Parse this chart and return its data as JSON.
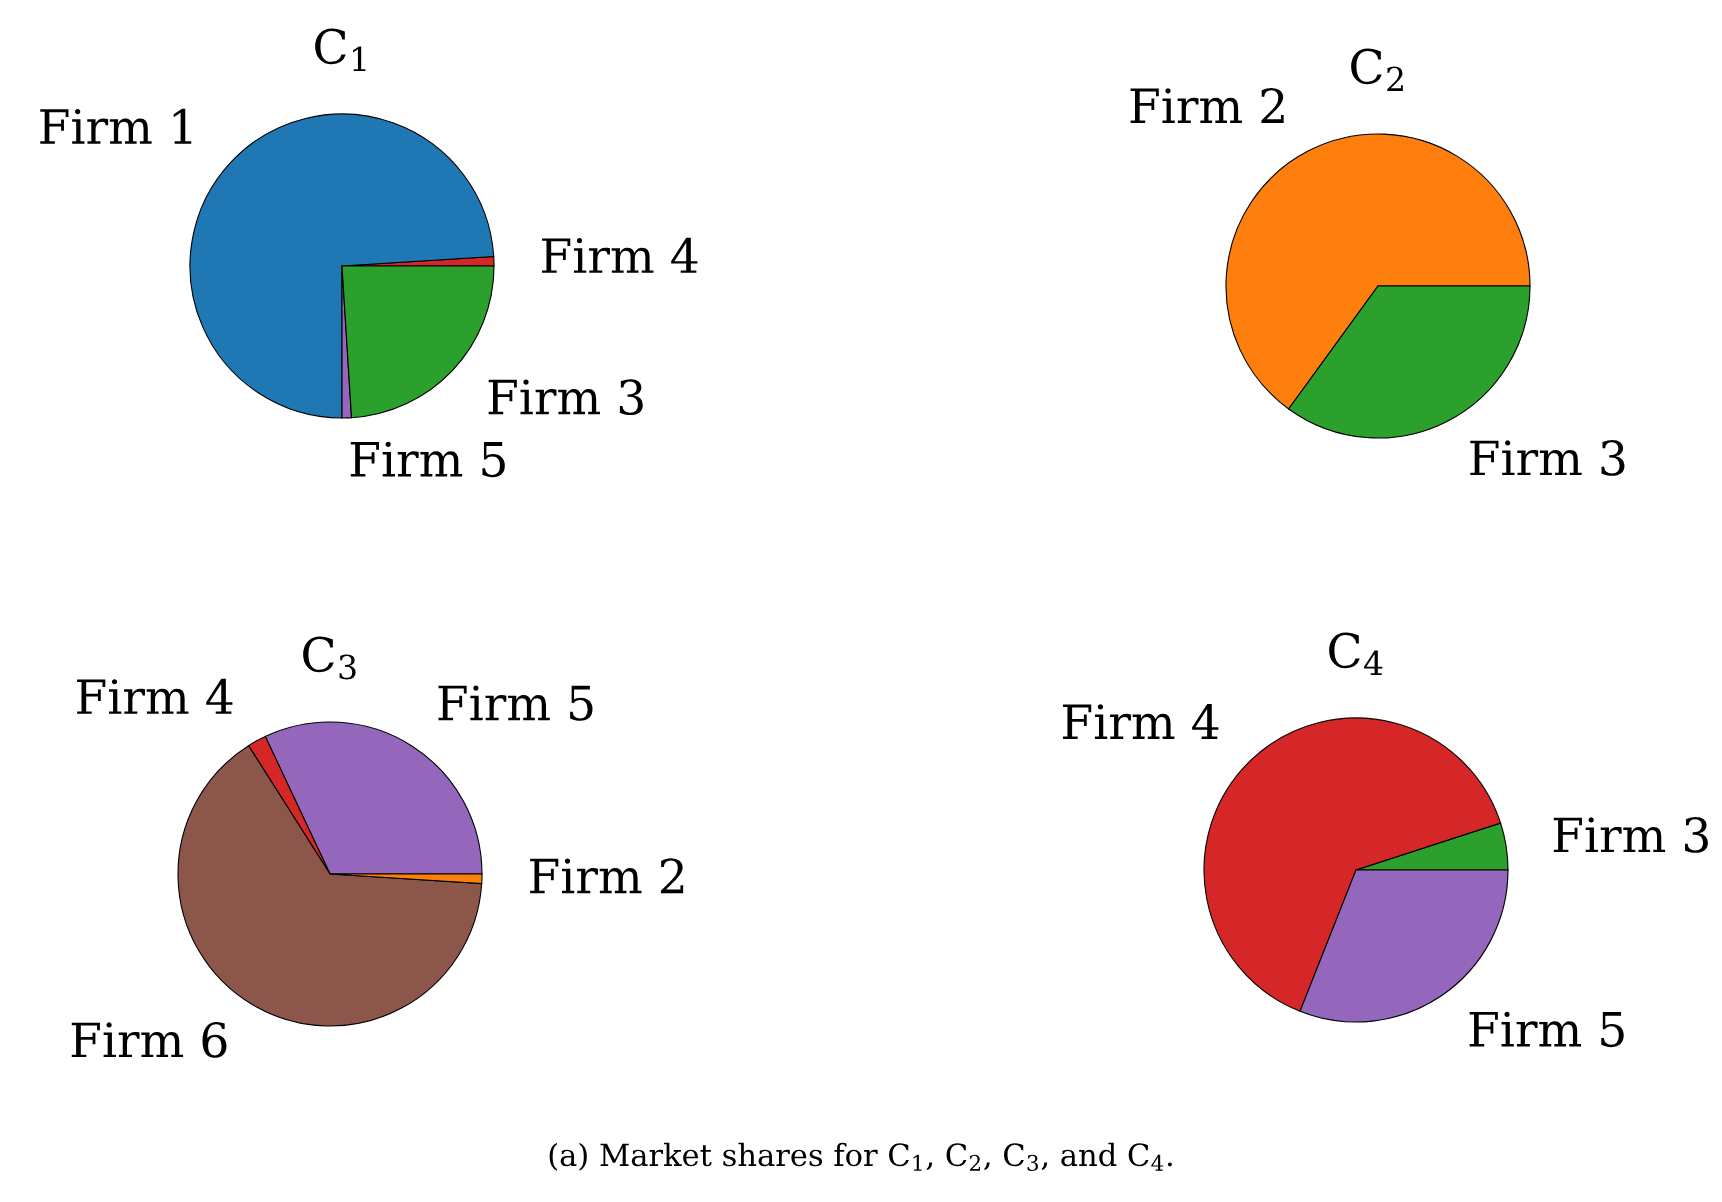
{
  "chart_data": [
    {
      "type": "pie",
      "title": "C$_{1}$",
      "categories": [
        "Firm 4",
        "Firm 1",
        "Firm 5",
        "Firm 3"
      ],
      "values": [
        1,
        74,
        1,
        24
      ],
      "colors": [
        "#d62728",
        "#1f77b4",
        "#9467bd",
        "#2ca02c"
      ]
    },
    {
      "type": "pie",
      "title": "C$_{2}$",
      "categories": [
        "Firm 2",
        "Firm 3"
      ],
      "values": [
        65,
        35
      ],
      "colors": [
        "#ff7f0e",
        "#2ca02c"
      ]
    },
    {
      "type": "pie",
      "title": "C$_{3}$",
      "categories": [
        "Firm 5",
        "Firm 4",
        "Firm 6",
        "Firm 2"
      ],
      "values": [
        32,
        2,
        65,
        1
      ],
      "colors": [
        "#9467bd",
        "#d62728",
        "#8c564b",
        "#ff7f0e"
      ]
    },
    {
      "type": "pie",
      "title": "C$_{4}$",
      "categories": [
        "Firm 3",
        "Firm 4",
        "Firm 5"
      ],
      "values": [
        5,
        64,
        31
      ],
      "colors": [
        "#2ca02c",
        "#d62728",
        "#9467bd"
      ],
      "annotations": [
        "(a) Market shares for C$_{1}$, C$_{2}$, C$_{3}$, and C$_{4}$."
      ]
    }
  ]
}
